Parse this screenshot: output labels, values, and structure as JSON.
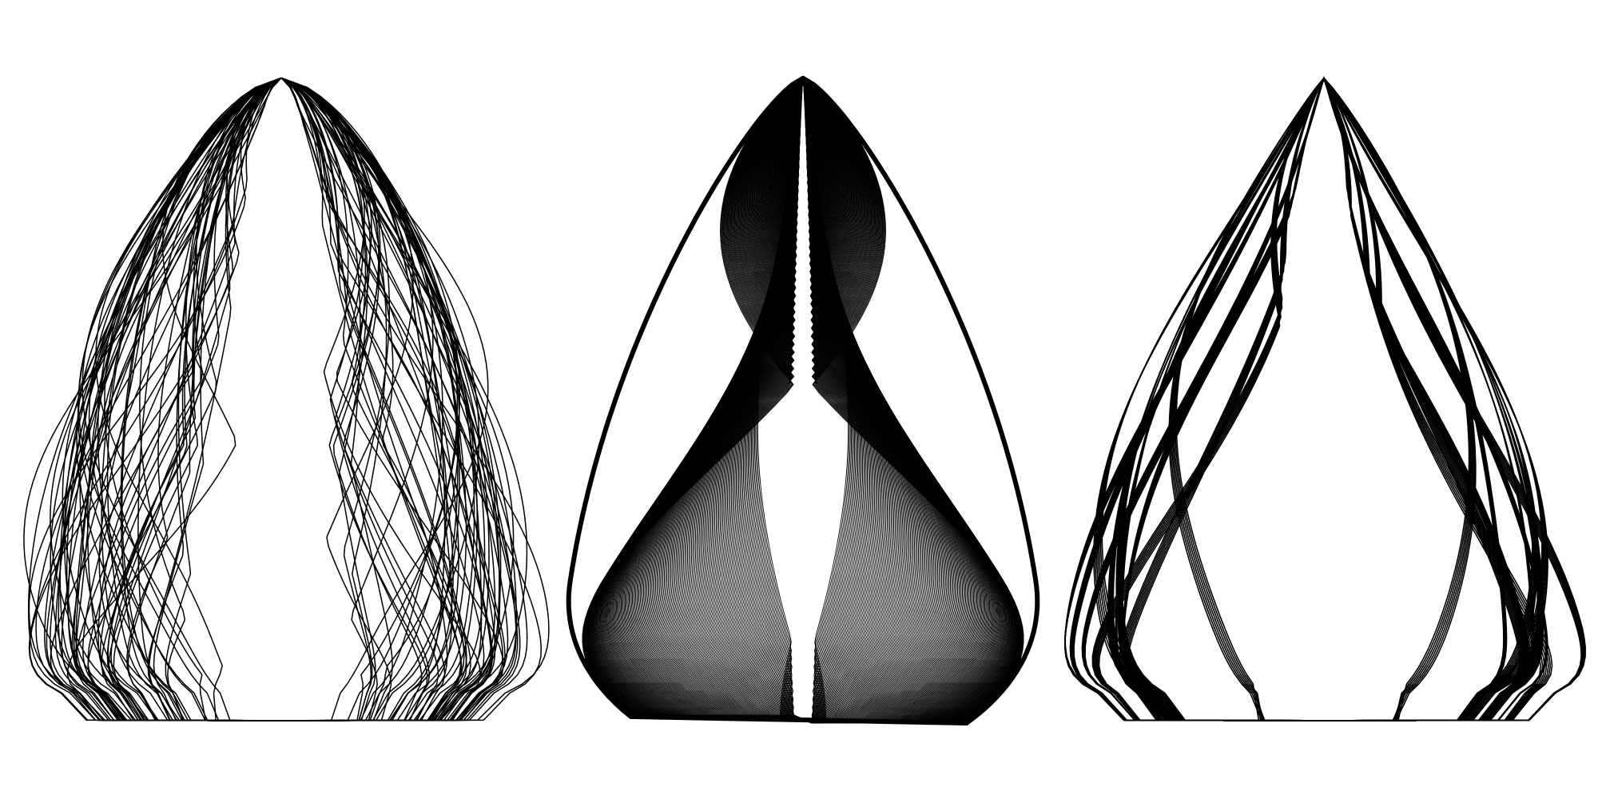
{
  "artwork": {
    "background_color": "#ffffff",
    "stroke_color": "#000000",
    "figures": [
      {
        "name": "random-phase-droplet",
        "curve_count": 60,
        "curve_style": "randomized phase and amplitude harmonic loops"
      },
      {
        "name": "moire-droplet",
        "curve_count": 180,
        "curve_style": "dense ordered harmonic loops forming a moire pattern with a central almond-shaped opening"
      },
      {
        "name": "clustered-droplet",
        "curve_count": 84,
        "curve_style": "harmonic loops grouped into thick bundles"
      }
    ]
  }
}
